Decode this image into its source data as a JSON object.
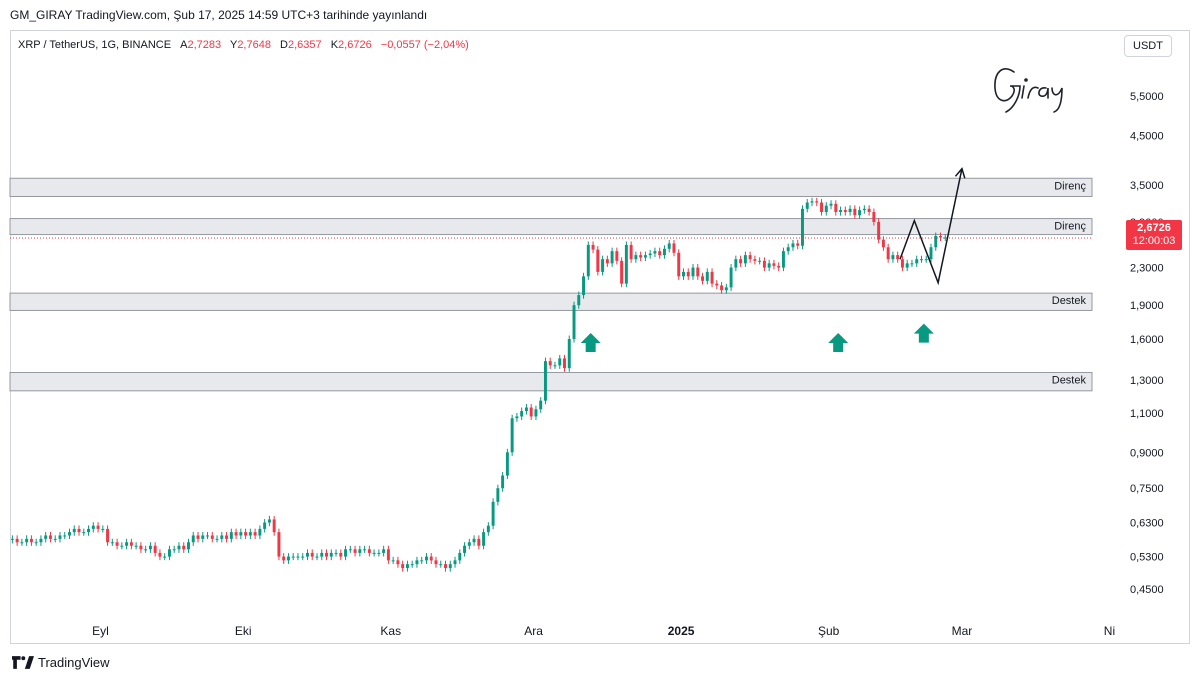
{
  "header": {
    "published": "GM_GIRAY TradingView.com, Şub 17, 2025 14:59 UTC+3 tarihinde yayınlandı"
  },
  "symbol_bar": {
    "symbol": "XRP / TetherUS, 1G, BINANCE",
    "open_label": "A",
    "open": "2,7283",
    "high_label": "Y",
    "high": "2,7648",
    "low_label": "D",
    "low": "2,6357",
    "close_label": "K",
    "close": "2,6726",
    "change": "−0,0557 (−2,04%)"
  },
  "currency_button": "USDT",
  "signature": "Giray",
  "last_price": {
    "price": "2,6726",
    "countdown": "12:00:03"
  },
  "footer": {
    "brand": "TradingView",
    "logo_icon": "tradingview-logo-icon"
  },
  "colors": {
    "up": "#089981",
    "down": "#f23645",
    "zone_fill": "#e8e9ec",
    "zone_border": "#9598a1",
    "arrow": "#089981"
  },
  "chart_data": {
    "type": "candlestick",
    "y_scale": "log",
    "ylim": [
      0.4,
      6.6
    ],
    "y_ticks": [
      5.5,
      4.5,
      3.5,
      2.9,
      2.3,
      1.9,
      1.6,
      1.3,
      1.1,
      0.9,
      0.75,
      0.63,
      0.53,
      0.45
    ],
    "y_tick_labels": [
      "5,5000",
      "4,5000",
      "3,5000",
      "2,9000",
      "2,3000",
      "1,9000",
      "1,6000",
      "1,3000",
      "1,1000",
      "0,9000",
      "0,7500",
      "0,6300",
      "0,5300",
      "0,4500"
    ],
    "x_ticks": [
      {
        "date": "2024-09-01",
        "label": "Eyl"
      },
      {
        "date": "2024-10-01",
        "label": "Eki"
      },
      {
        "date": "2024-11-01",
        "label": "Kas"
      },
      {
        "date": "2024-12-01",
        "label": "Ara"
      },
      {
        "date": "2025-01-01",
        "label": "2025"
      },
      {
        "date": "2025-02-01",
        "label": "Şub"
      },
      {
        "date": "2025-03-01",
        "label": "Mar"
      },
      {
        "date": "2025-04-01",
        "label": "Ni"
      }
    ],
    "start_date": "2024-08-13",
    "end_date": "2025-04-03",
    "close": [
      0.58,
      0.57,
      0.57,
      0.58,
      0.57,
      0.57,
      0.58,
      0.59,
      0.58,
      0.58,
      0.59,
      0.59,
      0.6,
      0.61,
      0.6,
      0.6,
      0.61,
      0.62,
      0.61,
      0.61,
      0.57,
      0.57,
      0.56,
      0.56,
      0.57,
      0.56,
      0.56,
      0.55,
      0.55,
      0.56,
      0.54,
      0.53,
      0.53,
      0.55,
      0.55,
      0.56,
      0.55,
      0.57,
      0.59,
      0.58,
      0.59,
      0.59,
      0.58,
      0.58,
      0.59,
      0.58,
      0.6,
      0.59,
      0.6,
      0.59,
      0.6,
      0.59,
      0.61,
      0.63,
      0.64,
      0.6,
      0.53,
      0.52,
      0.53,
      0.53,
      0.53,
      0.53,
      0.54,
      0.53,
      0.53,
      0.54,
      0.53,
      0.54,
      0.54,
      0.53,
      0.55,
      0.55,
      0.54,
      0.55,
      0.55,
      0.54,
      0.54,
      0.54,
      0.55,
      0.52,
      0.52,
      0.51,
      0.5,
      0.51,
      0.51,
      0.52,
      0.52,
      0.53,
      0.52,
      0.51,
      0.51,
      0.5,
      0.51,
      0.52,
      0.54,
      0.56,
      0.57,
      0.58,
      0.56,
      0.6,
      0.62,
      0.7,
      0.75,
      0.8,
      0.9,
      1.07,
      1.08,
      1.11,
      1.13,
      1.08,
      1.12,
      1.17,
      1.43,
      1.4,
      1.4,
      1.45,
      1.38,
      1.6,
      1.9,
      2.0,
      2.2,
      2.58,
      2.52,
      2.25,
      2.4,
      2.35,
      2.5,
      2.38,
      2.12,
      2.58,
      2.4,
      2.45,
      2.42,
      2.45,
      2.47,
      2.5,
      2.45,
      2.53,
      2.6,
      2.48,
      2.2,
      2.25,
      2.2,
      2.3,
      2.2,
      2.15,
      2.25,
      2.12,
      2.1,
      2.05,
      2.08,
      2.3,
      2.4,
      2.35,
      2.45,
      2.4,
      2.38,
      2.38,
      2.3,
      2.35,
      2.32,
      2.3,
      2.5,
      2.55,
      2.6,
      2.57,
      3.1,
      3.2,
      3.22,
      3.2,
      3.05,
      3.15,
      3.18,
      3.05,
      3.08,
      3.05,
      3.1,
      3.0,
      3.08,
      3.1,
      3.05,
      2.9,
      2.65,
      2.55,
      2.4,
      2.45,
      2.4,
      2.3,
      2.35,
      2.35,
      2.4,
      2.4,
      2.4,
      2.55,
      2.7,
      2.68,
      2.68
    ],
    "zones": [
      {
        "label": "Direnç",
        "low": 3.3,
        "high": 3.62
      },
      {
        "label": "Direnç",
        "low": 2.72,
        "high": 2.95
      },
      {
        "label": "Destek",
        "low": 1.85,
        "high": 2.02
      },
      {
        "label": "Destek",
        "low": 1.23,
        "high": 1.35
      }
    ],
    "last_price": 2.6726,
    "arrows": [
      {
        "date": "2024-12-13",
        "price": 1.65
      },
      {
        "date": "2025-02-03",
        "price": 1.65
      },
      {
        "date": "2025-02-21",
        "price": 1.73
      }
    ],
    "projection": [
      {
        "date": "2025-02-16",
        "price": 2.4
      },
      {
        "date": "2025-02-19",
        "price": 2.92
      },
      {
        "date": "2025-02-24",
        "price": 2.13
      },
      {
        "date": "2025-03-01",
        "price": 3.8
      }
    ]
  }
}
